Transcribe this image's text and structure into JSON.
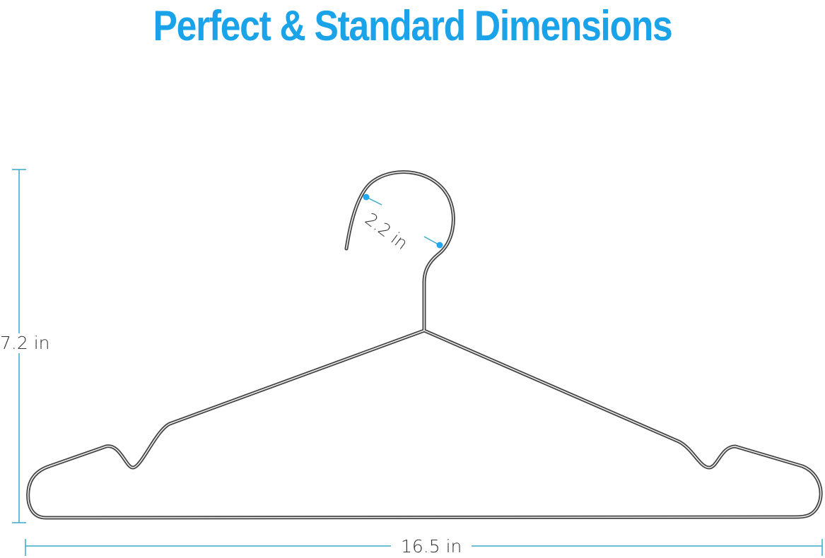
{
  "title": "Perfect & Standard Dimensions",
  "dimensions": {
    "height": "7.2 in",
    "width": "16.5 in",
    "hook_diameter": "2.2 in"
  },
  "colors": {
    "title": "#1AA3E8",
    "dimension_line": "#3AA9C9",
    "marker": "#22A7F0",
    "wire": "#555555"
  }
}
